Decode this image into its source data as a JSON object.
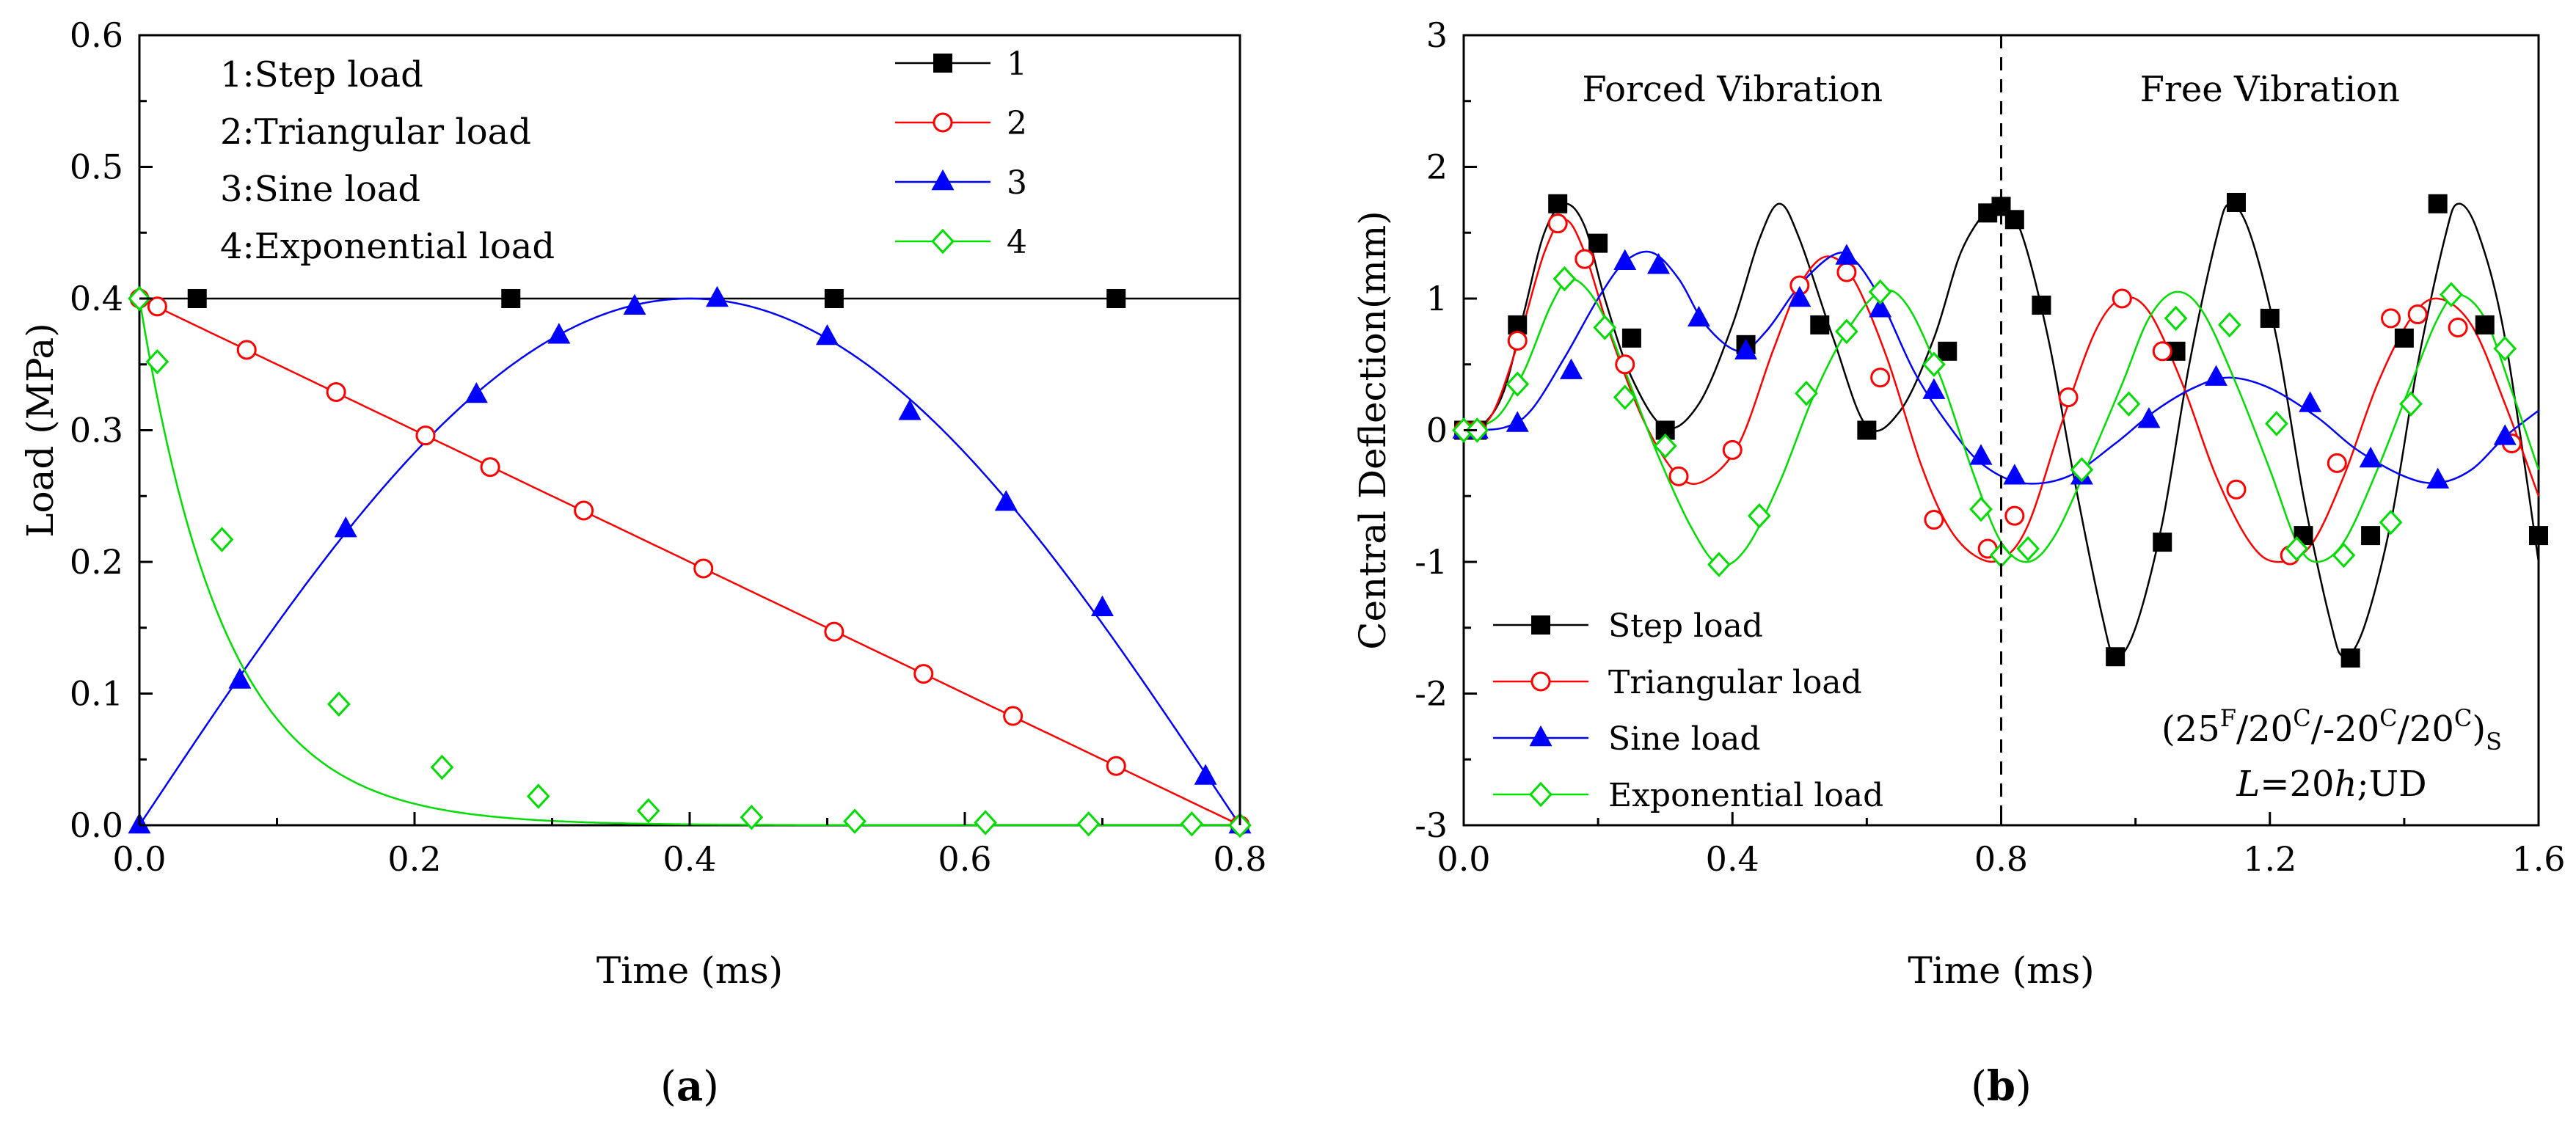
{
  "chart_data": [
    {
      "type": "line",
      "panel_label": "(a)",
      "panel_letter": "a",
      "xlabel": "Time (ms)",
      "ylabel": "Load (MPa)",
      "xlim": [
        0,
        0.8
      ],
      "ylim": [
        0,
        0.6
      ],
      "xticks": [
        0,
        0.2,
        0.4,
        0.6,
        0.8
      ],
      "xtick_labels": [
        "0.0",
        "0.2",
        "0.4",
        "0.6",
        "0.8"
      ],
      "yticks": [
        0,
        0.1,
        0.2,
        0.3,
        0.4,
        0.5,
        0.6
      ],
      "ytick_labels": [
        "0.0",
        "0.1",
        "0.2",
        "0.3",
        "0.4",
        "0.5",
        "0.6"
      ],
      "annotations": [
        "1:Step load",
        "2:Triangular  load",
        "3:Sine load",
        "4:Exponential  load"
      ],
      "legend_position": "top-right",
      "series": [
        {
          "name": "1",
          "color": "#000000",
          "marker": "square-filled",
          "formula": "step",
          "x": [
            0.042,
            0.27,
            0.505,
            0.71
          ],
          "y": [
            0.4,
            0.4,
            0.4,
            0.4
          ]
        },
        {
          "name": "2",
          "color": "#ff0000",
          "marker": "circle-open",
          "formula": "triangular",
          "x": [
            0.0,
            0.013,
            0.078,
            0.143,
            0.208,
            0.255,
            0.323,
            0.41,
            0.505,
            0.57,
            0.635,
            0.71,
            0.8
          ],
          "y": [
            0.4,
            0.394,
            0.361,
            0.329,
            0.296,
            0.272,
            0.239,
            0.195,
            0.147,
            0.115,
            0.083,
            0.045,
            0.0
          ]
        },
        {
          "name": "3",
          "color": "#0000ff",
          "marker": "triangle-filled",
          "formula": "sine",
          "x": [
            0.0,
            0.073,
            0.15,
            0.245,
            0.305,
            0.36,
            0.42,
            0.5,
            0.56,
            0.63,
            0.7,
            0.775,
            0.8
          ],
          "y": [
            0.0,
            0.11,
            0.225,
            0.327,
            0.372,
            0.394,
            0.4,
            0.371,
            0.314,
            0.245,
            0.165,
            0.037,
            0.0
          ]
        },
        {
          "name": "4",
          "color": "#00dd00",
          "marker": "diamond-open",
          "formula": "exponential",
          "x": [
            0.0,
            0.013,
            0.06,
            0.145,
            0.22,
            0.29,
            0.37,
            0.445,
            0.52,
            0.615,
            0.69,
            0.765,
            0.8
          ],
          "y": [
            0.4,
            0.352,
            0.217,
            0.092,
            0.044,
            0.022,
            0.011,
            0.006,
            0.003,
            0.002,
            0.001,
            0.001,
            0.0
          ]
        }
      ]
    },
    {
      "type": "line",
      "panel_label": "(b)",
      "panel_letter": "b",
      "xlabel": "Time (ms)",
      "ylabel": "Central Deflection(mm)",
      "xlim": [
        0,
        1.6
      ],
      "ylim": [
        -3,
        3
      ],
      "xticks": [
        0,
        0.4,
        0.8,
        1.2,
        1.6
      ],
      "xtick_labels": [
        "0.0",
        "0.4",
        "0.8",
        "1.2",
        "1.6"
      ],
      "yticks": [
        -3,
        -2,
        -1,
        0,
        1,
        2,
        3
      ],
      "ytick_labels": [
        "-3",
        "-2",
        "-1",
        "0",
        "1",
        "2",
        "3"
      ],
      "divider_x": 0.8,
      "region_labels": [
        "Forced Vibration",
        "Free Vibration"
      ],
      "annotation_line1": {
        "t1": "(25",
        "s1": "F",
        "t2": "/20",
        "s2": "C",
        "t3": "/-20",
        "s3": "C",
        "t4": "/20",
        "s4": "C",
        "t5": ")",
        "sub": "S"
      },
      "annotation_line2": {
        "italic": "L",
        "rest": "=20",
        "italic2": "h",
        "rest2": ";UD"
      },
      "legend_position": "bottom-left",
      "series": [
        {
          "name": "Step load",
          "color": "#000000",
          "marker": "square-filled",
          "x": [
            0.0,
            0.02,
            0.08,
            0.14,
            0.2,
            0.25,
            0.3,
            0.42,
            0.53,
            0.6,
            0.72,
            0.78,
            0.8,
            0.82,
            0.86,
            0.97,
            1.04,
            1.06,
            1.15,
            1.2,
            1.25,
            1.32,
            1.35,
            1.4,
            1.45,
            1.52,
            1.6
          ],
          "y": [
            0.0,
            0.0,
            0.8,
            1.72,
            1.42,
            0.7,
            0.0,
            0.65,
            0.8,
            0.0,
            0.6,
            1.65,
            1.7,
            1.6,
            0.95,
            -1.72,
            -0.85,
            0.6,
            1.73,
            0.85,
            -0.8,
            -1.73,
            -0.8,
            0.7,
            1.72,
            0.8,
            -0.8
          ],
          "curve": [
            [
              0,
              0
            ],
            [
              0.03,
              0.05
            ],
            [
              0.06,
              0.3
            ],
            [
              0.09,
              0.9
            ],
            [
              0.12,
              1.5
            ],
            [
              0.15,
              1.72
            ],
            [
              0.18,
              1.55
            ],
            [
              0.21,
              1.0
            ],
            [
              0.25,
              0.4
            ],
            [
              0.3,
              0.02
            ],
            [
              0.35,
              0.2
            ],
            [
              0.4,
              0.8
            ],
            [
              0.44,
              1.45
            ],
            [
              0.47,
              1.72
            ],
            [
              0.5,
              1.45
            ],
            [
              0.55,
              0.7
            ],
            [
              0.6,
              0.03
            ],
            [
              0.65,
              0.15
            ],
            [
              0.7,
              0.7
            ],
            [
              0.74,
              1.35
            ],
            [
              0.78,
              1.68
            ],
            [
              0.8,
              1.72
            ],
            [
              0.83,
              1.5
            ],
            [
              0.87,
              0.7
            ],
            [
              0.91,
              -0.4
            ],
            [
              0.95,
              -1.4
            ],
            [
              0.97,
              -1.72
            ],
            [
              1.0,
              -1.5
            ],
            [
              1.04,
              -0.7
            ],
            [
              1.08,
              0.5
            ],
            [
              1.12,
              1.45
            ],
            [
              1.14,
              1.72
            ],
            [
              1.17,
              1.5
            ],
            [
              1.21,
              0.7
            ],
            [
              1.25,
              -0.5
            ],
            [
              1.29,
              -1.45
            ],
            [
              1.31,
              -1.72
            ],
            [
              1.34,
              -1.5
            ],
            [
              1.38,
              -0.7
            ],
            [
              1.42,
              0.5
            ],
            [
              1.46,
              1.45
            ],
            [
              1.48,
              1.72
            ],
            [
              1.51,
              1.5
            ],
            [
              1.55,
              0.7
            ],
            [
              1.6,
              -1.0
            ]
          ]
        },
        {
          "name": "Triangular load",
          "color": "#ff0000",
          "marker": "circle-open",
          "x": [
            0.0,
            0.02,
            0.08,
            0.14,
            0.18,
            0.24,
            0.32,
            0.4,
            0.5,
            0.57,
            0.62,
            0.7,
            0.78,
            0.82,
            0.9,
            0.98,
            1.04,
            1.15,
            1.23,
            1.3,
            1.38,
            1.42,
            1.48,
            1.56
          ],
          "y": [
            0.0,
            0.0,
            0.68,
            1.57,
            1.3,
            0.5,
            -0.35,
            -0.15,
            1.1,
            1.2,
            0.4,
            -0.68,
            -0.9,
            -0.65,
            0.25,
            1.0,
            0.6,
            -0.45,
            -0.95,
            -0.25,
            0.85,
            0.88,
            0.78,
            -0.1
          ],
          "curve": [
            [
              0,
              0
            ],
            [
              0.04,
              0.1
            ],
            [
              0.08,
              0.65
            ],
            [
              0.12,
              1.35
            ],
            [
              0.15,
              1.6
            ],
            [
              0.18,
              1.35
            ],
            [
              0.22,
              0.7
            ],
            [
              0.27,
              0.05
            ],
            [
              0.32,
              -0.35
            ],
            [
              0.36,
              -0.38
            ],
            [
              0.41,
              -0.1
            ],
            [
              0.46,
              0.6
            ],
            [
              0.5,
              1.1
            ],
            [
              0.54,
              1.32
            ],
            [
              0.58,
              1.15
            ],
            [
              0.63,
              0.55
            ],
            [
              0.68,
              -0.25
            ],
            [
              0.72,
              -0.72
            ],
            [
              0.76,
              -0.95
            ],
            [
              0.8,
              -0.98
            ],
            [
              0.84,
              -0.72
            ],
            [
              0.89,
              0.05
            ],
            [
              0.94,
              0.75
            ],
            [
              0.98,
              1.0
            ],
            [
              1.02,
              0.9
            ],
            [
              1.07,
              0.35
            ],
            [
              1.12,
              -0.35
            ],
            [
              1.17,
              -0.85
            ],
            [
              1.21,
              -1.0
            ],
            [
              1.26,
              -0.88
            ],
            [
              1.31,
              -0.35
            ],
            [
              1.36,
              0.35
            ],
            [
              1.41,
              0.85
            ],
            [
              1.45,
              1.0
            ],
            [
              1.5,
              0.8
            ],
            [
              1.55,
              0.2
            ],
            [
              1.6,
              -0.5
            ]
          ]
        },
        {
          "name": "Sine load",
          "color": "#0000ff",
          "marker": "triangle-filled",
          "x": [
            0.0,
            0.02,
            0.08,
            0.16,
            0.24,
            0.29,
            0.35,
            0.42,
            0.5,
            0.57,
            0.62,
            0.7,
            0.77,
            0.82,
            0.92,
            1.02,
            1.12,
            1.26,
            1.35,
            1.45,
            1.55
          ],
          "y": [
            0.0,
            0.0,
            0.05,
            0.45,
            1.28,
            1.25,
            0.85,
            0.6,
            1.0,
            1.32,
            0.92,
            0.3,
            -0.2,
            -0.35,
            -0.35,
            0.08,
            0.4,
            0.2,
            -0.22,
            -0.38,
            -0.05
          ],
          "curve": [
            [
              0,
              0
            ],
            [
              0.06,
              0.02
            ],
            [
              0.1,
              0.15
            ],
            [
              0.15,
              0.55
            ],
            [
              0.2,
              1.0
            ],
            [
              0.24,
              1.28
            ],
            [
              0.28,
              1.35
            ],
            [
              0.32,
              1.15
            ],
            [
              0.36,
              0.8
            ],
            [
              0.41,
              0.6
            ],
            [
              0.45,
              0.75
            ],
            [
              0.5,
              1.1
            ],
            [
              0.55,
              1.33
            ],
            [
              0.58,
              1.3
            ],
            [
              0.62,
              1.0
            ],
            [
              0.67,
              0.45
            ],
            [
              0.72,
              0.05
            ],
            [
              0.77,
              -0.25
            ],
            [
              0.83,
              -0.4
            ],
            [
              0.9,
              -0.35
            ],
            [
              0.97,
              -0.1
            ],
            [
              1.03,
              0.15
            ],
            [
              1.09,
              0.33
            ],
            [
              1.14,
              0.4
            ],
            [
              1.2,
              0.32
            ],
            [
              1.27,
              0.1
            ],
            [
              1.33,
              -0.15
            ],
            [
              1.4,
              -0.35
            ],
            [
              1.45,
              -0.4
            ],
            [
              1.5,
              -0.3
            ],
            [
              1.55,
              -0.05
            ],
            [
              1.6,
              0.15
            ]
          ]
        },
        {
          "name": "Exponential load",
          "color": "#00dd00",
          "marker": "diamond-open",
          "x": [
            0.0,
            0.02,
            0.08,
            0.15,
            0.21,
            0.24,
            0.3,
            0.38,
            0.44,
            0.51,
            0.57,
            0.62,
            0.7,
            0.77,
            0.8,
            0.84,
            0.92,
            0.99,
            1.06,
            1.14,
            1.21,
            1.24,
            1.31,
            1.38,
            1.41,
            1.47,
            1.55
          ],
          "y": [
            0.0,
            0.0,
            0.35,
            1.15,
            0.78,
            0.25,
            -0.12,
            -1.02,
            -0.65,
            0.28,
            0.75,
            1.05,
            0.5,
            -0.6,
            -0.95,
            -0.9,
            -0.3,
            0.2,
            0.85,
            0.8,
            0.05,
            -0.9,
            -0.95,
            -0.7,
            0.2,
            1.03,
            0.62
          ],
          "curve": [
            [
              0,
              0
            ],
            [
              0.05,
              0.1
            ],
            [
              0.09,
              0.45
            ],
            [
              0.13,
              0.95
            ],
            [
              0.16,
              1.15
            ],
            [
              0.2,
              0.95
            ],
            [
              0.24,
              0.45
            ],
            [
              0.29,
              -0.2
            ],
            [
              0.34,
              -0.75
            ],
            [
              0.38,
              -1.02
            ],
            [
              0.42,
              -0.9
            ],
            [
              0.47,
              -0.4
            ],
            [
              0.52,
              0.25
            ],
            [
              0.57,
              0.75
            ],
            [
              0.62,
              1.05
            ],
            [
              0.66,
              0.95
            ],
            [
              0.71,
              0.4
            ],
            [
              0.76,
              -0.35
            ],
            [
              0.8,
              -0.85
            ],
            [
              0.84,
              -1.0
            ],
            [
              0.88,
              -0.8
            ],
            [
              0.93,
              -0.25
            ],
            [
              0.98,
              0.35
            ],
            [
              1.02,
              0.85
            ],
            [
              1.06,
              1.05
            ],
            [
              1.1,
              0.9
            ],
            [
              1.15,
              0.35
            ],
            [
              1.2,
              -0.3
            ],
            [
              1.24,
              -0.85
            ],
            [
              1.27,
              -1.0
            ],
            [
              1.31,
              -0.85
            ],
            [
              1.36,
              -0.3
            ],
            [
              1.41,
              0.35
            ],
            [
              1.45,
              0.85
            ],
            [
              1.48,
              1.03
            ],
            [
              1.52,
              0.85
            ],
            [
              1.56,
              0.3
            ],
            [
              1.6,
              -0.3
            ]
          ]
        }
      ]
    }
  ]
}
